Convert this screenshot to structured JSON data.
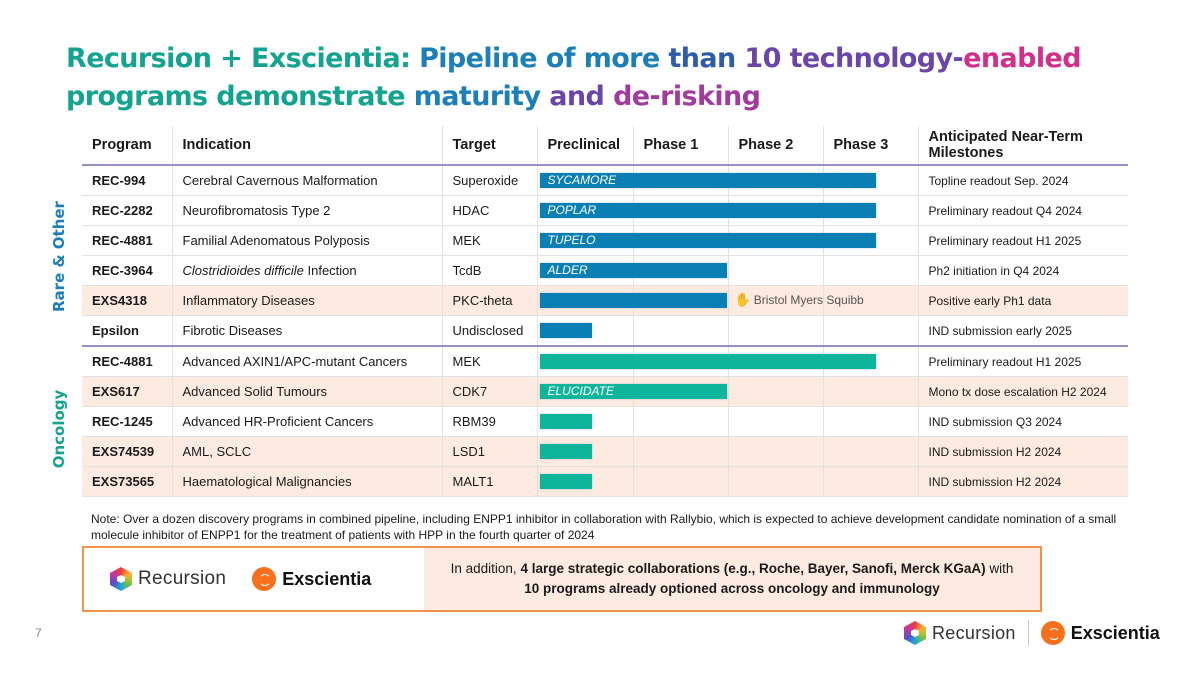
{
  "title": {
    "segments": [
      "Recursion + Exscientia: ",
      "Pipeline of more ",
      "than ",
      "10 technology-",
      "enabled",
      "programs demonstrate ",
      "maturity ",
      "and ",
      "de-risking"
    ]
  },
  "side_labels": {
    "rare": "Rare & Other",
    "oncology": "Oncology"
  },
  "table": {
    "headers": {
      "program": "Program",
      "indication": "Indication",
      "target": "Target",
      "preclinical": "Preclinical",
      "phase1": "Phase 1",
      "phase2": "Phase 2",
      "phase3": "Phase 3",
      "milestones": "Anticipated Near-Term Milestones"
    },
    "rows": [
      {
        "program": "REC-994",
        "indication": "Cerebral Cavernous Malformation",
        "target": "Superoxide",
        "stage": "Phase 2",
        "bar_label": "SYCAMORE",
        "milestone": "Topline readout Sep. 2024",
        "group": "rare"
      },
      {
        "program": "REC-2282",
        "indication": "Neurofibromatosis Type 2",
        "target": "HDAC",
        "stage": "Phase 2",
        "bar_label": "POPLAR",
        "milestone": "Preliminary readout Q4 2024",
        "group": "rare"
      },
      {
        "program": "REC-4881",
        "indication": "Familial Adenomatous Polyposis",
        "target": "MEK",
        "stage": "Phase 2",
        "bar_label": "TUPELO",
        "milestone": "Preliminary readout H1 2025",
        "group": "rare"
      },
      {
        "program": "REC-3964",
        "indication_italic": "Clostridioides difficile",
        "indication": " Infection",
        "target": "TcdB",
        "stage": "Phase 1",
        "bar_label": "ALDER",
        "milestone": "Ph2 initiation in Q4 2024",
        "group": "rare"
      },
      {
        "program": "EXS4318",
        "indication": "Inflammatory Diseases",
        "target": "PKC-theta",
        "stage": "Phase 1",
        "bar_label": "",
        "partner": "Bristol Myers Squibb",
        "milestone": "Positive early Ph1 data",
        "group": "rare"
      },
      {
        "program": "Epsilon",
        "indication": "Fibrotic Diseases",
        "target": "Undisclosed",
        "stage": "Preclinical",
        "bar_label": "",
        "milestone": "IND submission early 2025",
        "group": "rare"
      },
      {
        "program": "REC-4881",
        "indication": "Advanced AXIN1/APC-mutant Cancers",
        "target": "MEK",
        "stage": "Phase 2",
        "bar_label": "",
        "milestone": "Preliminary readout H1 2025",
        "group": "oncology"
      },
      {
        "program": "EXS617",
        "indication": "Advanced Solid Tumours",
        "target": "CDK7",
        "stage": "Phase 1",
        "bar_label": "ELUCIDATE",
        "milestone": "Mono tx dose escalation H2 2024",
        "group": "oncology"
      },
      {
        "program": "REC-1245",
        "indication": "Advanced HR-Proficient Cancers",
        "target": "RBM39",
        "stage": "Preclinical",
        "bar_label": "",
        "milestone": "IND submission Q3 2024",
        "group": "oncology"
      },
      {
        "program": "EXS74539",
        "indication": "AML, SCLC",
        "target": "LSD1",
        "stage": "Preclinical",
        "bar_label": "",
        "milestone": "IND submission H2 2024",
        "group": "oncology"
      },
      {
        "program": "EXS73565",
        "indication": "Haematological Malignancies",
        "target": "MALT1",
        "stage": "Preclinical",
        "bar_label": "",
        "milestone": "IND submission H2 2024",
        "group": "oncology"
      }
    ]
  },
  "note": "Note: Over a dozen discovery programs in combined pipeline, including ENPP1 inhibitor in collaboration with Rallybio, which is expected to achieve development candidate nomination of a small molecule inhibitor of ENPP1 for the treatment of patients with HPP in the fourth quarter of 2024",
  "collab": {
    "prefix": "In addition, ",
    "bold1": "4 large strategic collaborations (e.g., Roche, Bayer, Sanofi, Merck KGaA)",
    "mid": " with",
    "bold2": "10 programs already optioned across oncology and immunology"
  },
  "logos": {
    "recursion": "Recursion",
    "exscientia": "Exscientia"
  },
  "page_number": "7",
  "colors": {
    "rare_bar": "#0a7fb3",
    "oncology_bar": "#0fb59b",
    "highlight_row": "#fdebe1",
    "collab_border": "#f0924a"
  }
}
